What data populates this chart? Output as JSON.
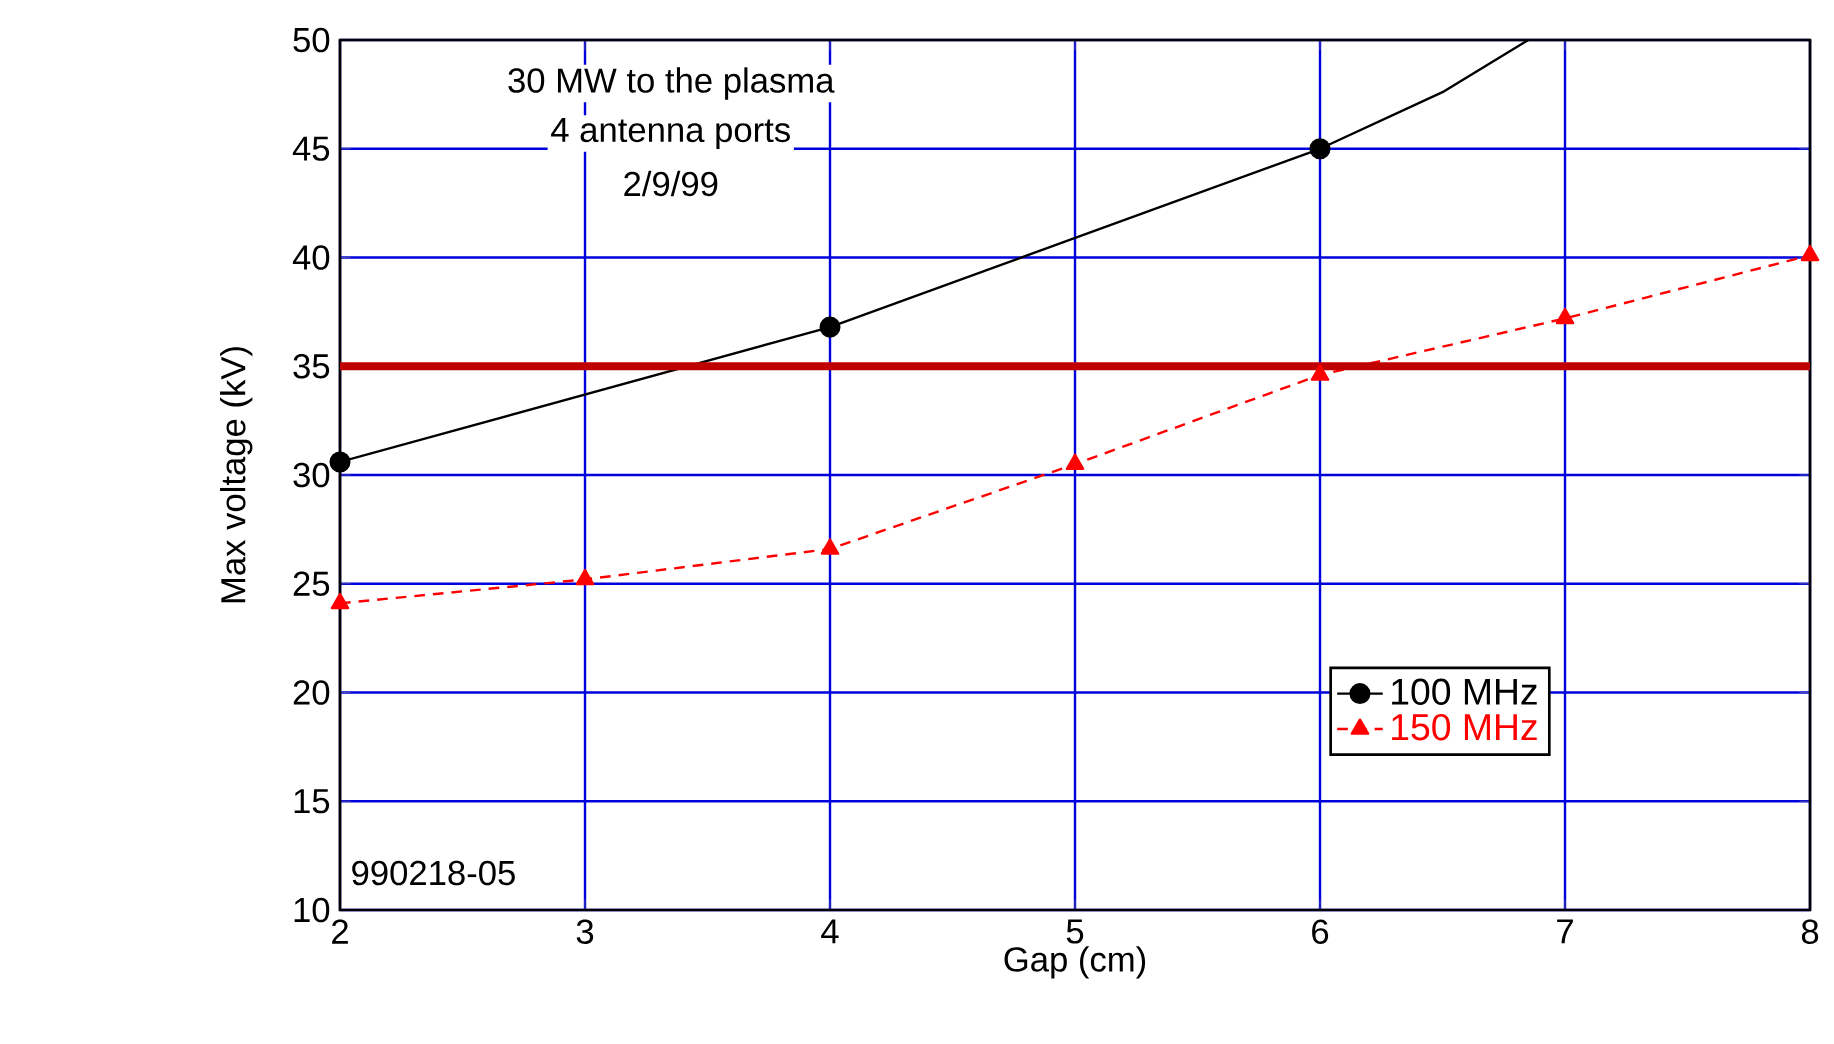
{
  "chart_data": {
    "type": "line",
    "xlabel": "Gap (cm)",
    "ylabel": "Max voltage (kV)",
    "xlim": [
      2,
      8
    ],
    "xticks": [
      2,
      3,
      4,
      5,
      6,
      7,
      8
    ],
    "ylim": [
      10,
      50
    ],
    "yticks": [
      10,
      15,
      20,
      25,
      30,
      35,
      40,
      45,
      50
    ],
    "grid": true,
    "legend": "bottom right",
    "series": [
      {
        "name": "100 MHz",
        "color": "#000000",
        "x": [
          2,
          4,
          6
        ],
        "values": [
          30.6,
          36.8,
          45
        ],
        "marker": "circle",
        "line_style": "solid"
      },
      {
        "name": "150 MHz",
        "color": "#ff0000",
        "x": [
          2,
          3,
          4,
          5,
          6,
          7,
          8
        ],
        "values": [
          24.1,
          25.2,
          26.6,
          30.5,
          34.6,
          37.2,
          40.1
        ],
        "marker": "triangle",
        "line_style": "dashed"
      },
      {
        "color": "#000000",
        "x": [
          6,
          6.5,
          6.85
        ],
        "values": [
          45,
          47.6,
          50
        ],
        "marker": "none",
        "line_style": "solid"
      }
    ],
    "ref_lines": [
      {
        "axis": "y",
        "value": 35,
        "color": "#c00000"
      }
    ],
    "annotations": [
      "30 MW to the plasma",
      "4 antenna ports",
      "2/9/99",
      "990218-05"
    ]
  }
}
